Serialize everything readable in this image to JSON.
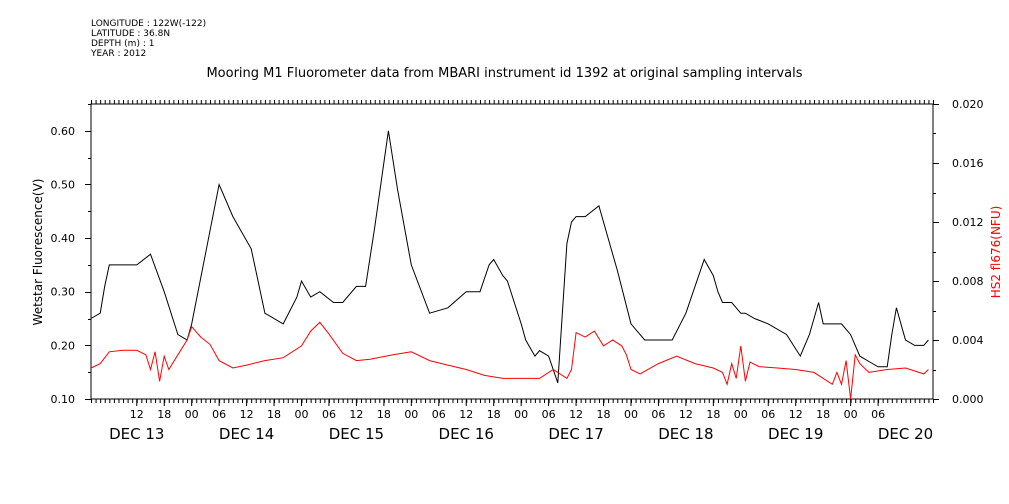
{
  "meta": {
    "longitude": "LONGITUDE : 122W(-122)",
    "latitude": "LATITUDE : 36.8N",
    "depth": "DEPTH (m) : 1",
    "year": "YEAR : 2012"
  },
  "chart_data": {
    "type": "line",
    "title": "Mooring M1 Fluorometer data from MBARI instrument id 1392 at original sampling intervals",
    "ylabel": "Wetstar Fluorescence(V)",
    "y2label": "HS2 fl676(NFU)",
    "ylim": [
      0.1,
      0.65
    ],
    "y2lim": [
      0.0,
      0.02
    ],
    "xlim": [
      "2012-12-13T02:00",
      "2012-12-20T18:00"
    ],
    "yticks": [
      "0.10",
      "0.20",
      "0.30",
      "0.40",
      "0.50",
      "0.60"
    ],
    "y2ticks": [
      "0.000",
      "0.004",
      "0.008",
      "0.012",
      "0.016",
      "0.020"
    ],
    "xtick_labels": [
      "12",
      "18",
      "00",
      "06",
      "12",
      "18",
      "00",
      "06",
      "12",
      "18",
      "00",
      "06",
      "12",
      "18",
      "00",
      "06",
      "12",
      "18",
      "00",
      "06",
      "12",
      "18",
      "00",
      "06",
      "12",
      "18",
      "00",
      "06"
    ],
    "xtick_times": [
      "12-13 12",
      "12-13 18",
      "12-14 00",
      "12-14 06",
      "12-14 12",
      "12-14 18",
      "12-15 00",
      "12-15 06",
      "12-15 12",
      "12-15 18",
      "12-16 00",
      "12-16 06",
      "12-16 12",
      "12-16 18",
      "12-17 00",
      "12-17 06",
      "12-17 12",
      "12-17 18",
      "12-18 00",
      "12-18 06",
      "12-18 12",
      "12-18 18",
      "12-19 00",
      "12-19 06",
      "12-19 12",
      "12-19 18",
      "12-20 00",
      "12-20 06"
    ],
    "day_labels": [
      "DEC 13",
      "DEC 14",
      "DEC 15",
      "DEC 16",
      "DEC 17",
      "DEC 18",
      "DEC 19",
      "DEC 20"
    ],
    "grid": false,
    "colors": {
      "wetstar": "#000000",
      "hs2": "#ff0000"
    },
    "series": [
      {
        "name": "Wetstar Fluorescence(V)",
        "axis": "left",
        "x": [
          "12-13 02",
          "12-13 04",
          "12-13 05",
          "12-13 06",
          "12-13 08",
          "12-13 12",
          "12-13 15",
          "12-13 18",
          "12-13 21",
          "12-13 23",
          "12-14 00",
          "12-14 03",
          "12-14 06",
          "12-14 09",
          "12-14 13",
          "12-14 16",
          "12-14 20",
          "12-14 23",
          "12-15 00",
          "12-15 02",
          "12-15 04",
          "12-15 07",
          "12-15 09",
          "12-15 12",
          "12-15 14",
          "12-15 16",
          "12-15 19",
          "12-15 21",
          "12-16 00",
          "12-16 04",
          "12-16 08",
          "12-16 12",
          "12-16 15",
          "12-16 17",
          "12-16 18",
          "12-16 20",
          "12-16 21",
          "12-17 00",
          "12-17 01",
          "12-17 03",
          "12-17 04",
          "12-17 06",
          "12-17 08",
          "12-17 10",
          "12-17 11",
          "12-17 12",
          "12-17 14",
          "12-17 17",
          "12-17 21",
          "12-18 00",
          "12-18 03",
          "12-18 05",
          "12-18 09",
          "12-18 12",
          "12-18 16",
          "12-18 18",
          "12-18 19",
          "12-18 20",
          "12-18 21",
          "12-18 22",
          "12-18 23",
          "12-19 00",
          "12-19 01",
          "12-19 03",
          "12-19 06",
          "12-19 10",
          "12-19 13",
          "12-19 15",
          "12-19 17",
          "12-19 18",
          "12-19 20",
          "12-19 22",
          "12-19 23",
          "12-20 00",
          "12-20 02",
          "12-20 04",
          "12-20 06",
          "12-20 08",
          "12-20 09",
          "12-20 10",
          "12-20 12",
          "12-20 14",
          "12-20 16",
          "12-20 17"
        ],
        "y": [
          0.25,
          0.26,
          0.31,
          0.35,
          0.35,
          0.35,
          0.37,
          0.3,
          0.22,
          0.21,
          0.24,
          0.37,
          0.5,
          0.44,
          0.38,
          0.26,
          0.24,
          0.29,
          0.32,
          0.29,
          0.3,
          0.28,
          0.28,
          0.31,
          0.31,
          0.42,
          0.6,
          0.49,
          0.35,
          0.26,
          0.27,
          0.3,
          0.3,
          0.35,
          0.36,
          0.33,
          0.32,
          0.24,
          0.21,
          0.18,
          0.19,
          0.18,
          0.13,
          0.39,
          0.43,
          0.44,
          0.44,
          0.46,
          0.34,
          0.24,
          0.21,
          0.21,
          0.21,
          0.26,
          0.36,
          0.33,
          0.3,
          0.28,
          0.28,
          0.28,
          0.27,
          0.26,
          0.26,
          0.25,
          0.24,
          0.22,
          0.18,
          0.22,
          0.28,
          0.24,
          0.24,
          0.24,
          0.23,
          0.22,
          0.18,
          0.17,
          0.16,
          0.16,
          0.22,
          0.27,
          0.21,
          0.2,
          0.2,
          0.21
        ]
      },
      {
        "name": "HS2 fl676(NFU)",
        "axis": "right",
        "x": [
          "12-13 02",
          "12-13 04",
          "12-13 06",
          "12-13 09",
          "12-13 12",
          "12-13 14",
          "12-13 15",
          "12-13 16",
          "12-13 17",
          "12-13 18",
          "12-13 19",
          "12-13 21",
          "12-13 23",
          "12-14 00",
          "12-14 02",
          "12-14 04",
          "12-14 06",
          "12-14 09",
          "12-14 12",
          "12-14 16",
          "12-14 20",
          "12-15 00",
          "12-15 02",
          "12-15 04",
          "12-15 06",
          "12-15 09",
          "12-15 12",
          "12-15 15",
          "12-15 20",
          "12-16 00",
          "12-16 04",
          "12-16 08",
          "12-16 12",
          "12-16 16",
          "12-16 20",
          "12-17 00",
          "12-17 04",
          "12-17 07",
          "12-17 10",
          "12-17 11",
          "12-17 12",
          "12-17 14",
          "12-17 16",
          "12-17 18",
          "12-17 20",
          "12-17 22",
          "12-17 23",
          "12-18 00",
          "12-18 02",
          "12-18 06",
          "12-18 10",
          "12-18 14",
          "12-18 18",
          "12-18 20",
          "12-18 21",
          "12-18 22",
          "12-18 23",
          "12-19 00",
          "12-19 01",
          "12-19 02",
          "12-19 04",
          "12-19 08",
          "12-19 12",
          "12-19 16",
          "12-19 20",
          "12-19 21",
          "12-19 22",
          "12-19 23",
          "12-20 00",
          "12-20 01",
          "12-20 02",
          "12-20 04",
          "12-20 08",
          "12-20 12",
          "12-20 16",
          "12-20 17"
        ],
        "y": [
          0.0021,
          0.0024,
          0.0032,
          0.0033,
          0.0033,
          0.003,
          0.002,
          0.0032,
          0.0012,
          0.0029,
          0.002,
          0.003,
          0.004,
          0.0049,
          0.0042,
          0.0037,
          0.0026,
          0.0021,
          0.0023,
          0.0026,
          0.0028,
          0.0036,
          0.0046,
          0.0052,
          0.0044,
          0.0031,
          0.0026,
          0.0027,
          0.003,
          0.0032,
          0.0026,
          0.0023,
          0.002,
          0.0016,
          0.0014,
          0.0014,
          0.0014,
          0.002,
          0.0014,
          0.002,
          0.0045,
          0.0042,
          0.0046,
          0.0036,
          0.004,
          0.0036,
          0.003,
          0.002,
          0.0017,
          0.0024,
          0.0029,
          0.0024,
          0.0021,
          0.0018,
          0.001,
          0.0024,
          0.0014,
          0.0036,
          0.0012,
          0.0025,
          0.0022,
          0.0021,
          0.002,
          0.0018,
          0.001,
          0.0018,
          0.001,
          0.0026,
          0.0,
          0.003,
          0.0024,
          0.0018,
          0.002,
          0.0021,
          0.0017,
          0.002
        ]
      }
    ]
  }
}
